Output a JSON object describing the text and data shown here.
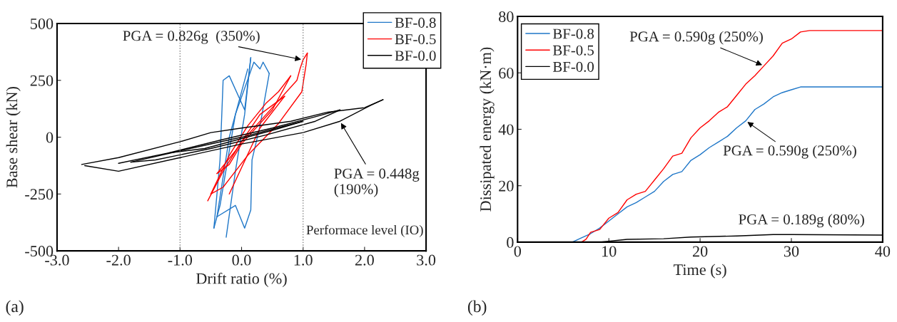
{
  "chart_data": [
    {
      "type": "line",
      "xlabel": "Drift ratio (%)",
      "ylabel": "Base shear (kN)",
      "xlim": [
        -3,
        3
      ],
      "ylim": [
        -500,
        500
      ],
      "xticks": [
        {
          "value": -3,
          "label": "-3.0"
        },
        {
          "value": -2,
          "label": "-2.0"
        },
        {
          "value": -1,
          "label": "-1.0"
        },
        {
          "value": 0,
          "label": "0.0"
        },
        {
          "value": 1,
          "label": "1.0"
        },
        {
          "value": 2,
          "label": "2.0"
        },
        {
          "value": 3,
          "label": "3.0"
        }
      ],
      "yticks": [
        -500,
        -250,
        0,
        250,
        500
      ],
      "legend": "top right",
      "series": [
        {
          "name": "BF-0.8",
          "color": "#1f77c8",
          "x": [
            -0.25,
            -0.1,
            0.05,
            0.15
          ],
          "values": [
            -440,
            -150,
            100,
            350
          ]
        },
        {
          "color": "#1f77c8",
          "x": [
            0.15,
            0.05,
            -0.2,
            -0.3,
            -0.35,
            -0.45
          ],
          "values": [
            350,
            120,
            270,
            250,
            -100,
            -400
          ]
        },
        {
          "color": "#1f77c8",
          "x": [
            -0.45,
            -0.35,
            -0.1,
            0.2,
            0.3,
            0.35,
            0.45
          ],
          "values": [
            -400,
            -300,
            100,
            330,
            300,
            330,
            280
          ]
        },
        {
          "color": "#1f77c8",
          "x": [
            0.45,
            0.3,
            0.17,
            0.15,
            0.05,
            -0.1,
            -0.4
          ],
          "values": [
            280,
            50,
            -100,
            -320,
            -400,
            -300,
            -350
          ]
        },
        {
          "color": "#1f77c8",
          "x": [
            -0.4,
            -0.2,
            0.1
          ],
          "values": [
            -350,
            0,
            300
          ]
        },
        {
          "name": "BF-0.5",
          "color": "#ff0000",
          "x": [
            -0.55,
            -0.3,
            0,
            0.4,
            0.9,
            0.95,
            1.0,
            1.07
          ],
          "values": [
            -280,
            -150,
            -20,
            100,
            250,
            300,
            340,
            370
          ]
        },
        {
          "color": "#ff0000",
          "x": [
            1.07,
            1.05,
            0.98,
            0.6,
            0.1,
            -0.3,
            -0.5
          ],
          "values": [
            370,
            320,
            200,
            60,
            -80,
            -220,
            -250
          ]
        },
        {
          "color": "#ff0000",
          "x": [
            -0.5,
            -0.2,
            0.1,
            0.4,
            0.6,
            0.8
          ],
          "values": [
            -250,
            -80,
            50,
            150,
            200,
            270
          ]
        },
        {
          "color": "#ff0000",
          "x": [
            0.8,
            0.5,
            0,
            -0.2,
            -0.4
          ],
          "values": [
            270,
            120,
            -30,
            -120,
            -160
          ]
        },
        {
          "color": "#ff0000",
          "x": [
            -0.4,
            -0.1,
            0.3,
            0.7
          ],
          "values": [
            -160,
            -60,
            100,
            180
          ]
        },
        {
          "color": "#ff0000",
          "x": [
            0.7,
            0.3,
            -0.2
          ],
          "values": [
            180,
            40,
            -250
          ]
        },
        {
          "name": "BF-0.0",
          "color": "#000000",
          "x": [
            -2.6,
            -2.0,
            -1.0,
            -0.5,
            0,
            0.8,
            1.4,
            2.0,
            2.3
          ],
          "values": [
            -120,
            -90,
            -20,
            20,
            40,
            70,
            110,
            130,
            165
          ]
        },
        {
          "color": "#000000",
          "x": [
            2.3,
            2.1,
            1.6,
            1.0,
            0,
            -1.0,
            -2.0,
            -2.55
          ],
          "values": [
            165,
            140,
            70,
            20,
            -30,
            -90,
            -150,
            -125
          ]
        },
        {
          "color": "#000000",
          "x": [
            -2.0,
            -1.2,
            -0.3,
            0.5,
            1.2,
            1.6
          ],
          "values": [
            -115,
            -70,
            -10,
            40,
            90,
            120
          ]
        },
        {
          "color": "#000000",
          "x": [
            1.6,
            1.2,
            0.4,
            -0.5,
            -1.4,
            -1.8
          ],
          "values": [
            120,
            70,
            10,
            -50,
            -100,
            -110
          ]
        },
        {
          "color": "#000000",
          "x": [
            -1.8,
            -1.0,
            0,
            1.0
          ],
          "values": [
            -110,
            -60,
            0,
            70
          ]
        },
        {
          "color": "#000000",
          "x": [
            1.0,
            0.5,
            -0.6,
            -1.2
          ],
          "values": [
            70,
            30,
            -50,
            -70
          ]
        }
      ],
      "ref_lines": [
        {
          "axis": "x",
          "value": -1,
          "color": "#808080",
          "line_style": "dotted"
        },
        {
          "axis": "x",
          "value": 1,
          "label": "Performace level (IO)",
          "color": "#808080",
          "line_style": "dotted"
        }
      ],
      "annotations": [
        {
          "text": "PGA = 0.826g  (350%)",
          "x": 1.0,
          "y": 340
        },
        {
          "text": "PGA = 0.448g\n(190%)",
          "x": 1.6,
          "y": 70
        },
        "(a)"
      ]
    },
    {
      "type": "line",
      "xlabel": "Time (s)",
      "ylabel": "Dissipated energy (kN·m)",
      "xlim": [
        0,
        40
      ],
      "ylim": [
        0,
        80
      ],
      "xticks": [
        0,
        10,
        20,
        30,
        40
      ],
      "yticks": [
        0,
        20,
        40,
        60,
        80
      ],
      "legend": "top left",
      "series": [
        {
          "name": "BF-0.8",
          "color": "#1f77c8",
          "x": [
            0,
            6,
            7,
            8,
            9,
            10,
            11,
            12,
            13,
            14,
            15,
            16,
            17,
            18,
            19,
            20,
            21,
            22,
            23,
            24,
            25,
            26,
            27,
            28,
            29,
            30,
            31,
            40
          ],
          "values": [
            0,
            0,
            1.5,
            3,
            5,
            7.5,
            10,
            12.5,
            14,
            16,
            18,
            21.5,
            24,
            25,
            29,
            31,
            33.5,
            35.5,
            37.5,
            40.5,
            43,
            47,
            49,
            51.5,
            53,
            54,
            55,
            55
          ]
        },
        {
          "name": "BF-0.5",
          "color": "#ff0000",
          "x": [
            0,
            7,
            7.5,
            8,
            9,
            10,
            11,
            12,
            13,
            14,
            15,
            16,
            17,
            18,
            19,
            20,
            21,
            22,
            23,
            24,
            25,
            26,
            27,
            28,
            29,
            30,
            31,
            32,
            40
          ],
          "values": [
            0,
            0,
            1,
            3.5,
            4.5,
            8.5,
            10.5,
            15,
            17,
            18,
            22,
            26,
            30.5,
            31.5,
            37,
            40.5,
            43,
            46,
            48,
            52,
            56,
            59,
            62.5,
            66,
            70.5,
            72,
            74.5,
            75,
            75
          ]
        },
        {
          "name": "BF-0.0",
          "color": "#000000",
          "x": [
            0,
            9,
            12,
            16,
            19,
            24,
            28,
            30,
            40
          ],
          "values": [
            0,
            0,
            1,
            1.2,
            1.8,
            2.2,
            2.7,
            2.7,
            2.5
          ]
        }
      ],
      "annotations": [
        {
          "text": "PGA = 0.590g (250%)",
          "x": 27,
          "y": 62.5
        },
        {
          "text": "PGA = 0.590g (250%)",
          "x": 25,
          "y": 43
        },
        "PGA = 0.189g (80%)",
        "(b)"
      ]
    }
  ]
}
